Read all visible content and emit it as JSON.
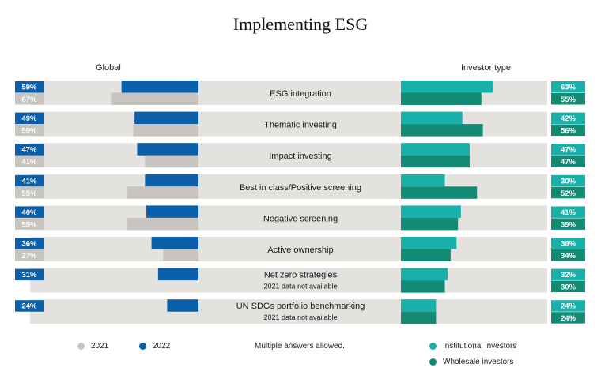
{
  "title": "Implementing ESG",
  "headers": {
    "left": "Global",
    "right": "Investor type"
  },
  "legend_left": [
    {
      "label": "2021",
      "color": "#c8c4c0"
    },
    {
      "label": "2022",
      "color": "#0b5ea8"
    }
  ],
  "legend_right": [
    {
      "label": "Institutional investors",
      "color": "#1ab0aa"
    },
    {
      "label": "Wholesale investors",
      "color": "#138a73"
    }
  ],
  "note": "Multiple answers allowed.",
  "colors": {
    "y2021": "#c8c4c0",
    "y2022": "#0b5ea8",
    "institutional": "#1ab0aa",
    "wholesale": "#138a73",
    "row_bg": "#e4e2de"
  },
  "chart_data": {
    "type": "bar",
    "categories": [
      "ESG integration",
      "Thematic investing",
      "Impact investing",
      "Best in class/Positive screening",
      "Negative screening",
      "Active ownership",
      "Net zero strategies",
      "UN SDGs portfolio benchmarking"
    ],
    "notes": [
      "",
      "",
      "",
      "",
      "",
      "",
      "2021 data not available",
      "2021 data not available"
    ],
    "global": {
      "series": [
        {
          "name": "2022",
          "values": [
            59,
            49,
            47,
            41,
            40,
            36,
            31,
            24
          ]
        },
        {
          "name": "2021",
          "values": [
            67,
            50,
            41,
            55,
            55,
            27,
            null,
            null
          ]
        }
      ]
    },
    "investor_type": {
      "series": [
        {
          "name": "Institutional investors",
          "values": [
            63,
            42,
            47,
            30,
            41,
            38,
            32,
            24
          ]
        },
        {
          "name": "Wholesale investors",
          "values": [
            55,
            56,
            47,
            52,
            39,
            34,
            30,
            24
          ]
        }
      ]
    },
    "unit": "%"
  }
}
